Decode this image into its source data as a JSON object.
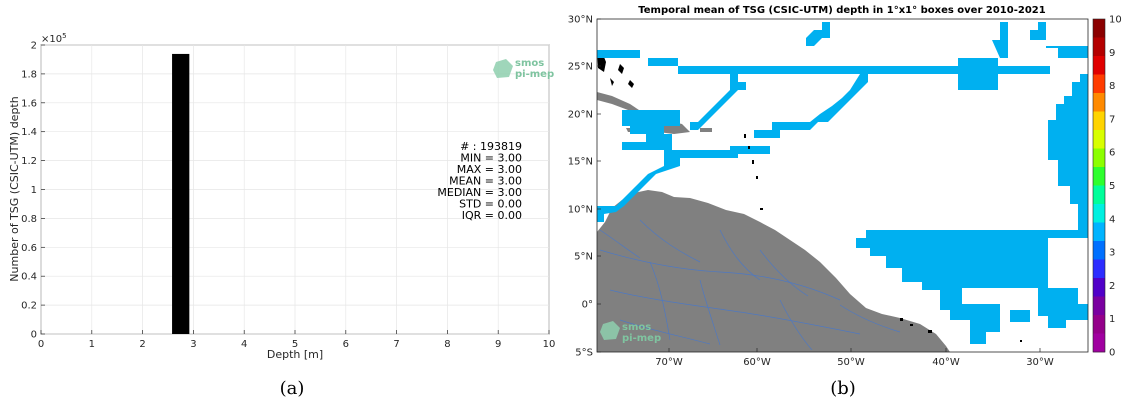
{
  "chart_data": [
    {
      "type": "bar",
      "x": [
        2.75
      ],
      "values": [
        193819
      ],
      "bar_color": "#000000",
      "xlabel": "Depth [m]",
      "ylabel": "Number of TSG (CSIC-UTM) depth",
      "xlim": [
        0,
        10
      ],
      "ylim": [
        0,
        200000
      ],
      "xticks": [
        "0",
        "1",
        "2",
        "3",
        "4",
        "5",
        "6",
        "7",
        "8",
        "9",
        "10"
      ],
      "yticks": [
        "0",
        "0.2",
        "0.4",
        "0.6",
        "0.8",
        "1",
        "1.2",
        "1.4",
        "1.6",
        "1.8",
        "2"
      ],
      "y_multiplier": "×10",
      "y_multiplier_exp": "5",
      "grid": true,
      "stats": [
        "# : 193819",
        "MIN = 3.00",
        "MAX =  3.00",
        "MEAN = 3.00",
        "MEDIAN = 3.00",
        "STD = 0.00",
        "IQR = 0.00"
      ],
      "caption": "(a)"
    },
    {
      "type": "heatmap",
      "title": "Temporal mean of TSG (CSIC-UTM) depth in 1°x1° boxes over 2010-2021",
      "lat_ticks": [
        "30°N",
        "25°N",
        "20°N",
        "15°N",
        "10°N",
        "5°N",
        "0°",
        "5°S"
      ],
      "lon_ticks": [
        "70°W",
        "60°W",
        "50°W",
        "40°W",
        "30°W"
      ],
      "colorbar_ticks": [
        "10",
        "9",
        "8",
        "7",
        "6",
        "5",
        "4",
        "3",
        "2",
        "1",
        "0"
      ],
      "value_shown": 3,
      "track_color": "#00b0f0",
      "land_color": "#808080",
      "river_color": "#4a78c8",
      "caption": "(b)"
    }
  ],
  "logo": {
    "line1": "smos",
    "line2": "pi-mep"
  }
}
